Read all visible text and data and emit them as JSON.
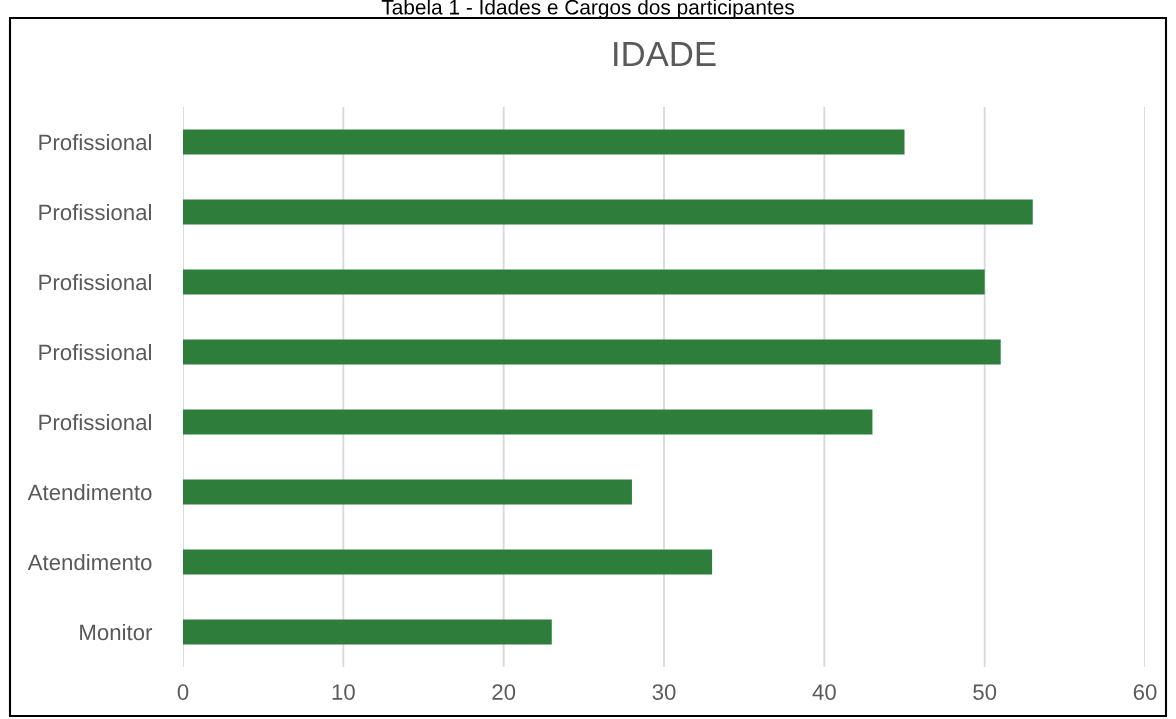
{
  "chart_data": {
    "type": "bar",
    "orientation": "horizontal",
    "title": "IDADE",
    "annotations": [
      "Tabela 1 - Idades e Cargos dos participantes"
    ],
    "categories": [
      "Profissional",
      "Profissional",
      "Profissional",
      "Profissional",
      "Profissional",
      "Atendimento",
      "Atendimento",
      "Monitor"
    ],
    "values": [
      45,
      53,
      50,
      51,
      43,
      28,
      33,
      23
    ],
    "color": "#2e7d3b",
    "xlim": [
      0,
      60
    ],
    "xticks": [
      0,
      10,
      20,
      30,
      40,
      50,
      60
    ],
    "grid": "x"
  }
}
